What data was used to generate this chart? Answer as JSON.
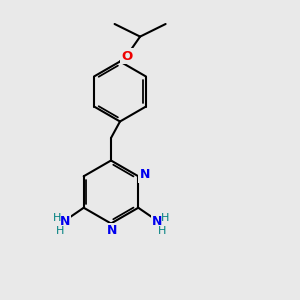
{
  "bg_color": "#e9e9e9",
  "bond_color": "#000000",
  "bond_width": 1.5,
  "N_color": "#0000ee",
  "O_color": "#ee0000",
  "H_color": "#008080",
  "font_size_atom": 8.5,
  "fig_bg": "#e9e9e9",
  "xlim": [
    0,
    10
  ],
  "ylim": [
    0,
    10
  ]
}
